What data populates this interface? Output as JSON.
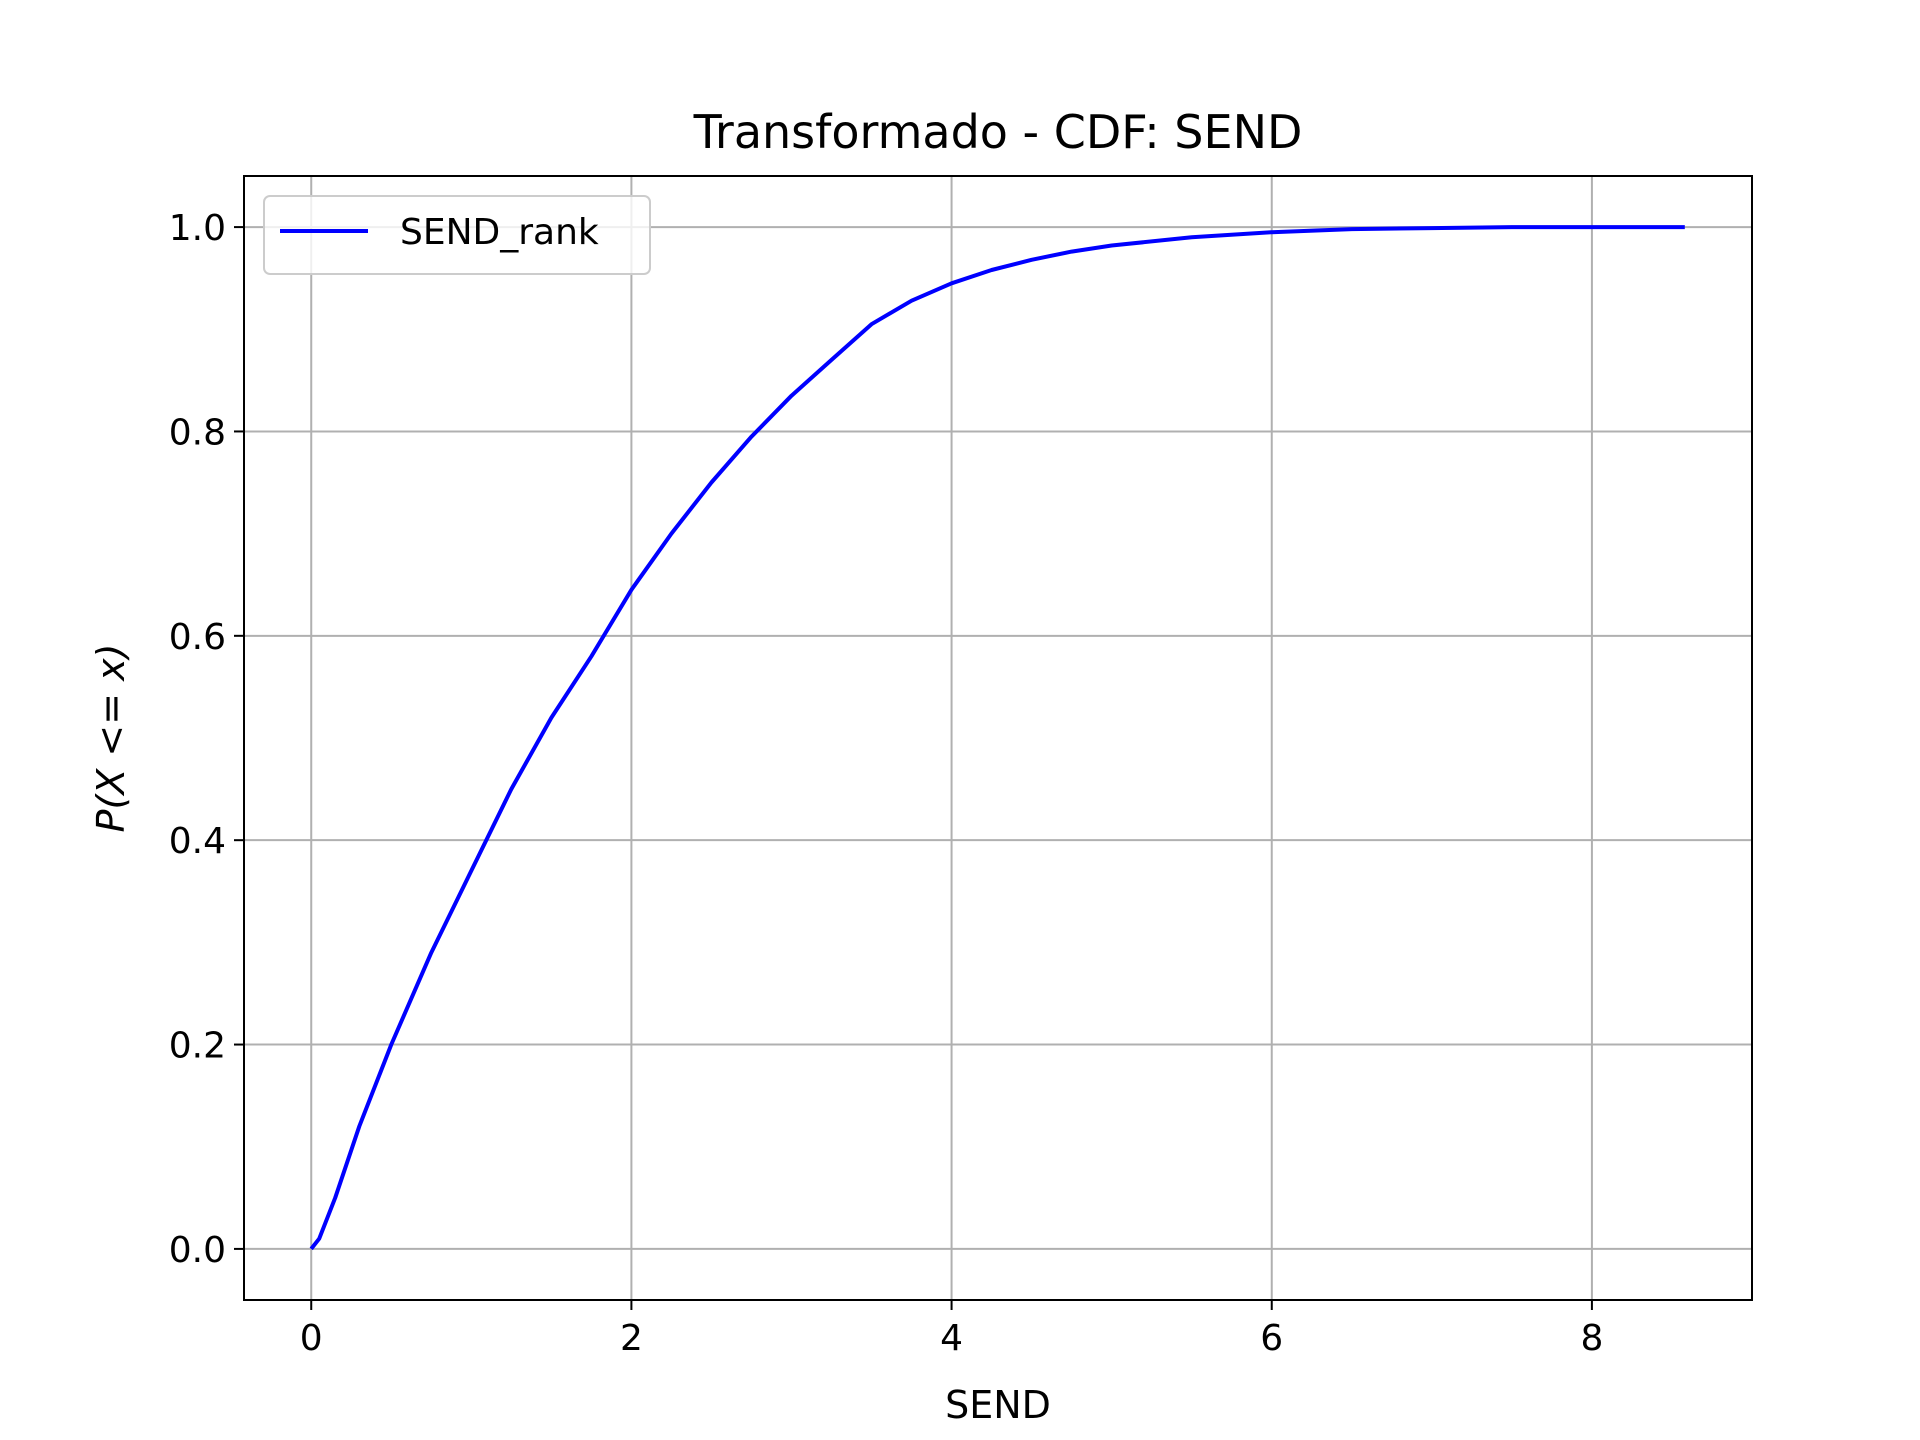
{
  "chart_data": {
    "type": "line",
    "title": "Transformado - CDF: SEND",
    "xlabel": "SEND",
    "ylabel": "P(X <= x)",
    "xlim": [
      -0.42,
      9.0
    ],
    "ylim": [
      -0.05,
      1.05
    ],
    "xticks": [
      0,
      2,
      4,
      6,
      8
    ],
    "yticks": [
      0.0,
      0.2,
      0.4,
      0.6,
      0.8,
      1.0
    ],
    "xtick_labels": [
      "0",
      "2",
      "4",
      "6",
      "8"
    ],
    "ytick_labels": [
      "0.0",
      "0.2",
      "0.4",
      "0.6",
      "0.8",
      "1.0"
    ],
    "grid": true,
    "legend_position": "top-left",
    "series": [
      {
        "name": "SEND_rank",
        "color": "#0000ff",
        "x": [
          0,
          0.05,
          0.15,
          0.3,
          0.5,
          0.75,
          1.0,
          1.25,
          1.5,
          1.75,
          2.0,
          2.25,
          2.5,
          2.75,
          3.0,
          3.25,
          3.5,
          3.75,
          4.0,
          4.25,
          4.5,
          4.75,
          5.0,
          5.5,
          6.0,
          6.5,
          7.0,
          7.5,
          8.0,
          8.58
        ],
        "y": [
          0.0,
          0.01,
          0.05,
          0.12,
          0.2,
          0.29,
          0.37,
          0.45,
          0.52,
          0.58,
          0.645,
          0.7,
          0.75,
          0.795,
          0.835,
          0.87,
          0.905,
          0.928,
          0.945,
          0.958,
          0.968,
          0.976,
          0.982,
          0.99,
          0.995,
          0.998,
          0.999,
          1.0,
          1.0,
          1.0
        ]
      }
    ]
  }
}
